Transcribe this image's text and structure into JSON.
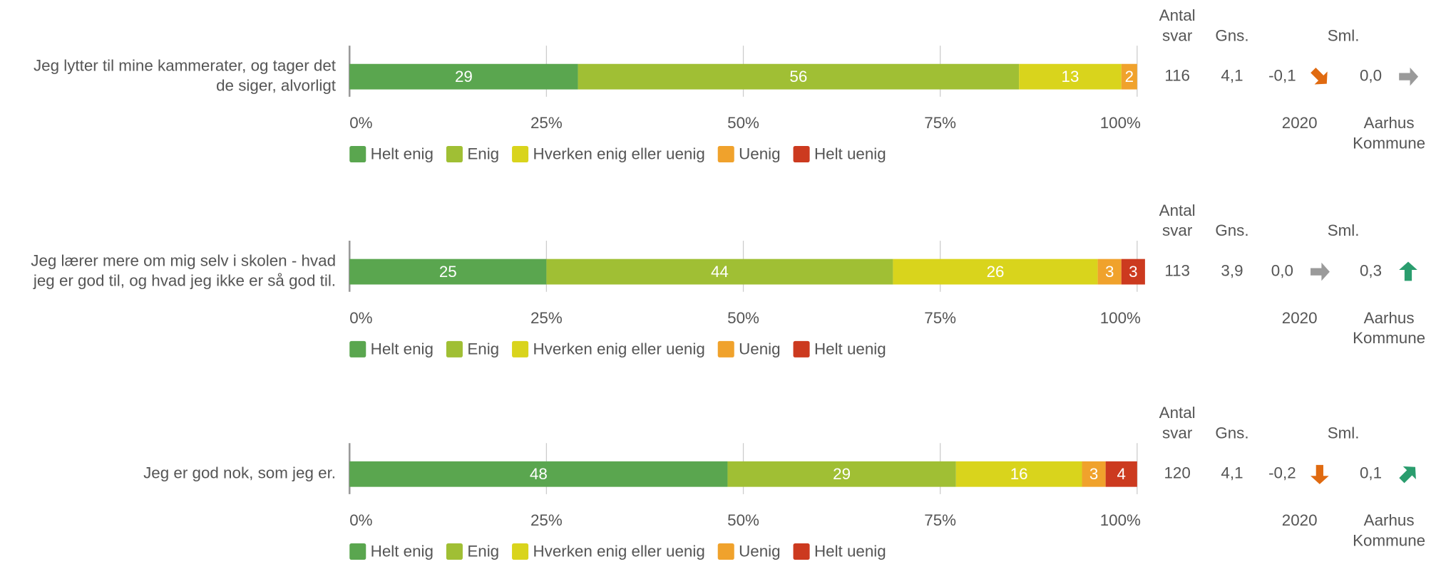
{
  "chart_data": [
    {
      "type": "bar",
      "orientation": "horizontal",
      "stacked": true,
      "title": [
        "Jeg lytter til mine kammerater, og tager det",
        "de siger, alvorligt"
      ],
      "xlim": [
        0,
        100
      ],
      "xticks": [
        {
          "value": 0,
          "label": "0%"
        },
        {
          "value": 25,
          "label": "25%"
        },
        {
          "value": 50,
          "label": "50%"
        },
        {
          "value": 75,
          "label": "75%"
        },
        {
          "value": 100,
          "label": "100%"
        }
      ],
      "grid": true,
      "series": [
        {
          "name": "Helt enig",
          "color": "#5aa64f",
          "values": [
            29
          ]
        },
        {
          "name": "Enig",
          "color": "#a0bf34",
          "values": [
            56
          ]
        },
        {
          "name": "Hverken enig eller uenig",
          "color": "#d9d41c",
          "values": [
            13
          ]
        },
        {
          "name": "Uenig",
          "color": "#f0a22c",
          "values": [
            2
          ]
        },
        {
          "name": "Helt uenig",
          "color": "#cc3a1f",
          "values": [
            0
          ]
        }
      ],
      "stats": {
        "count_header": [
          "Antal",
          "svar"
        ],
        "mean_header": "Gns.",
        "compare_header": "Sml.",
        "count": 116,
        "mean": {
          "value": 4.1,
          "label": "4,1"
        },
        "compare": [
          {
            "name": [
              "2020"
            ],
            "value": -0.1,
            "label": "-0,1"
          },
          {
            "name": [
              "Aarhus",
              "Kommune"
            ],
            "value": 0,
            "label": "0,0"
          }
        ]
      }
    },
    {
      "type": "bar",
      "orientation": "horizontal",
      "stacked": true,
      "title": [
        "Jeg lærer mere om mig selv i skolen - hvad",
        "jeg er god til, og hvad jeg ikke er så god til."
      ],
      "xlim": [
        0,
        100
      ],
      "xticks": [
        {
          "value": 0,
          "label": "0%"
        },
        {
          "value": 25,
          "label": "25%"
        },
        {
          "value": 50,
          "label": "50%"
        },
        {
          "value": 75,
          "label": "75%"
        },
        {
          "value": 100,
          "label": "100%"
        }
      ],
      "grid": true,
      "series": [
        {
          "name": "Helt enig",
          "color": "#5aa64f",
          "values": [
            25
          ]
        },
        {
          "name": "Enig",
          "color": "#a0bf34",
          "values": [
            44
          ]
        },
        {
          "name": "Hverken enig eller uenig",
          "color": "#d9d41c",
          "values": [
            26
          ]
        },
        {
          "name": "Uenig",
          "color": "#f0a22c",
          "values": [
            3
          ]
        },
        {
          "name": "Helt uenig",
          "color": "#cc3a1f",
          "values": [
            3
          ]
        }
      ],
      "stats": {
        "count_header": [
          "Antal",
          "svar"
        ],
        "mean_header": "Gns.",
        "compare_header": "Sml.",
        "count": 113,
        "mean": {
          "value": 3.9,
          "label": "3,9"
        },
        "compare": [
          {
            "name": [
              "2020"
            ],
            "value": 0,
            "label": "0,0"
          },
          {
            "name": [
              "Aarhus",
              "Kommune"
            ],
            "value": 0.3,
            "label": "0,3"
          }
        ]
      }
    },
    {
      "type": "bar",
      "orientation": "horizontal",
      "stacked": true,
      "title": [
        "Jeg er god nok, som jeg er."
      ],
      "xlim": [
        0,
        100
      ],
      "xticks": [
        {
          "value": 0,
          "label": "0%"
        },
        {
          "value": 25,
          "label": "25%"
        },
        {
          "value": 50,
          "label": "50%"
        },
        {
          "value": 75,
          "label": "75%"
        },
        {
          "value": 100,
          "label": "100%"
        }
      ],
      "grid": true,
      "series": [
        {
          "name": "Helt enig",
          "color": "#5aa64f",
          "values": [
            48
          ]
        },
        {
          "name": "Enig",
          "color": "#a0bf34",
          "values": [
            29
          ]
        },
        {
          "name": "Hverken enig eller uenig",
          "color": "#d9d41c",
          "values": [
            16
          ]
        },
        {
          "name": "Uenig",
          "color": "#f0a22c",
          "values": [
            3
          ]
        },
        {
          "name": "Helt uenig",
          "color": "#cc3a1f",
          "values": [
            4
          ]
        }
      ],
      "stats": {
        "count_header": [
          "Antal",
          "svar"
        ],
        "mean_header": "Gns.",
        "compare_header": "Sml.",
        "count": 120,
        "mean": {
          "value": 4.1,
          "label": "4,1"
        },
        "compare": [
          {
            "name": [
              "2020"
            ],
            "value": -0.2,
            "label": "-0,2"
          },
          {
            "name": [
              "Aarhus",
              "Kommune"
            ],
            "value": 0.1,
            "label": "0,1"
          }
        ]
      }
    }
  ]
}
